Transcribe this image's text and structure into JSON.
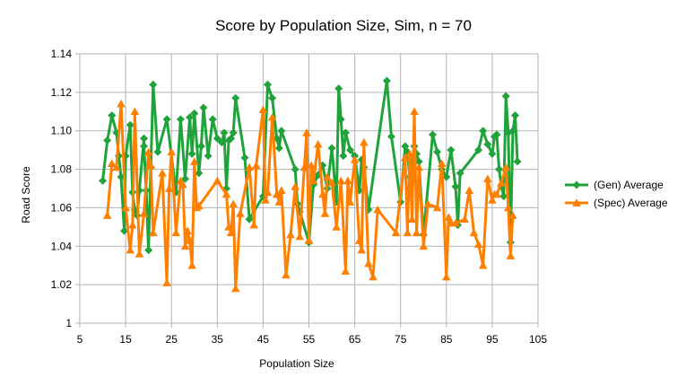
{
  "chart_data": {
    "type": "line",
    "title": "Score by Population Size, Sim, n = 70",
    "xlabel": "Population Size",
    "ylabel": "Road Score",
    "xlim": [
      5,
      105
    ],
    "ylim": [
      1,
      1.14
    ],
    "xticks": [
      5,
      15,
      25,
      35,
      45,
      55,
      65,
      75,
      85,
      95,
      105
    ],
    "yticks": [
      1,
      1.02,
      1.04,
      1.06,
      1.08,
      1.1,
      1.12,
      1.14
    ],
    "grid": true,
    "legend_position": "right",
    "series": [
      {
        "name": "(Gen) Average",
        "color": "#1fa33a",
        "marker": "diamond",
        "points": [
          [
            10,
            1.074
          ],
          [
            11,
            1.095
          ],
          [
            12,
            1.108
          ],
          [
            13,
            1.099
          ],
          [
            13.5,
            1.087
          ],
          [
            14,
            1.076
          ],
          [
            14.7,
            1.048
          ],
          [
            15,
            1.087
          ],
          [
            16,
            1.103
          ],
          [
            16.5,
            1.068
          ],
          [
            17,
            1.059
          ],
          [
            17.5,
            1.056
          ],
          [
            18,
            1.069
          ],
          [
            19,
            1.096
          ],
          [
            19,
            1.092
          ],
          [
            19.5,
            1.069
          ],
          [
            20,
            1.038
          ],
          [
            20.5,
            1.081
          ],
          [
            21,
            1.124
          ],
          [
            22,
            1.089
          ],
          [
            24,
            1.106
          ],
          [
            26,
            1.068
          ],
          [
            27,
            1.106
          ],
          [
            28,
            1.075
          ],
          [
            29,
            1.107
          ],
          [
            29.5,
            1.088
          ],
          [
            30,
            1.109
          ],
          [
            31,
            1.078
          ],
          [
            31.5,
            1.092
          ],
          [
            32,
            1.112
          ],
          [
            33,
            1.087
          ],
          [
            34,
            1.106
          ],
          [
            35,
            1.096
          ],
          [
            36,
            1.094
          ],
          [
            36.5,
            1.099
          ],
          [
            37,
            1.07
          ],
          [
            37.5,
            1.095
          ],
          [
            38,
            1.096
          ],
          [
            38.5,
            1.099
          ],
          [
            39,
            1.117
          ],
          [
            41,
            1.086
          ],
          [
            42,
            1.054
          ],
          [
            45,
            1.066
          ],
          [
            46,
            1.124
          ],
          [
            47,
            1.117
          ],
          [
            48,
            1.096
          ],
          [
            48.5,
            1.091
          ],
          [
            49,
            1.1
          ],
          [
            52,
            1.08
          ],
          [
            52.5,
            1.062
          ],
          [
            53,
            1.058
          ],
          [
            55,
            1.042
          ],
          [
            56,
            1.072
          ],
          [
            57,
            1.077
          ],
          [
            58,
            1.082
          ],
          [
            59,
            1.07
          ],
          [
            60,
            1.091
          ],
          [
            61,
            1.063
          ],
          [
            61.5,
            1.122
          ],
          [
            62,
            1.106
          ],
          [
            62.5,
            1.087
          ],
          [
            63,
            1.099
          ],
          [
            64,
            1.09
          ],
          [
            65,
            1.087
          ],
          [
            66,
            1.069
          ],
          [
            66.5,
            1.085
          ],
          [
            67,
            1.081
          ],
          [
            68,
            1.059
          ],
          [
            72,
            1.126
          ],
          [
            73,
            1.097
          ],
          [
            75,
            1.063
          ],
          [
            76,
            1.092
          ],
          [
            76.5,
            1.089
          ],
          [
            77,
            1.076
          ],
          [
            77.5,
            1.083
          ],
          [
            78,
            1.092
          ],
          [
            78.5,
            1.088
          ],
          [
            79,
            1.084
          ],
          [
            80,
            1.046
          ],
          [
            82,
            1.098
          ],
          [
            83,
            1.089
          ],
          [
            84,
            1.08
          ],
          [
            85,
            1.076
          ],
          [
            86,
            1.09
          ],
          [
            87,
            1.071
          ],
          [
            87.5,
            1.051
          ],
          [
            88,
            1.078
          ],
          [
            92,
            1.09
          ],
          [
            93,
            1.1
          ],
          [
            94,
            1.093
          ],
          [
            95,
            1.088
          ],
          [
            95.5,
            1.097
          ],
          [
            96,
            1.098
          ],
          [
            96.5,
            1.08
          ],
          [
            97,
            1.071
          ],
          [
            97.5,
            1.066
          ],
          [
            98,
            1.118
          ],
          [
            98.5,
            1.099
          ],
          [
            99,
            1.042
          ],
          [
            99.5,
            1.1
          ],
          [
            100,
            1.108
          ],
          [
            100.5,
            1.084
          ]
        ]
      },
      {
        "name": "(Spec) Average",
        "color": "#ff8000",
        "marker": "triangle",
        "points": [
          [
            11,
            1.056
          ],
          [
            12,
            1.083
          ],
          [
            13,
            1.081
          ],
          [
            14,
            1.114
          ],
          [
            15,
            1.06
          ],
          [
            16,
            1.038
          ],
          [
            16.5,
            1.051
          ],
          [
            17,
            1.11
          ],
          [
            18,
            1.036
          ],
          [
            19,
            1.057
          ],
          [
            20,
            1.089
          ],
          [
            20.5,
            1.082
          ],
          [
            21,
            1.047
          ],
          [
            23,
            1.078
          ],
          [
            24,
            1.021
          ],
          [
            24.5,
            1.07
          ],
          [
            25,
            1.089
          ],
          [
            26,
            1.047
          ],
          [
            27,
            1.074
          ],
          [
            27.5,
            1.072
          ],
          [
            28,
            1.04
          ],
          [
            28.5,
            1.048
          ],
          [
            29,
            1.043
          ],
          [
            29.5,
            1.03
          ],
          [
            30,
            1.084
          ],
          [
            30.5,
            1.06
          ],
          [
            31,
            1.061
          ],
          [
            35,
            1.074
          ],
          [
            37,
            1.067
          ],
          [
            37.5,
            1.05
          ],
          [
            38,
            1.047
          ],
          [
            38.5,
            1.062
          ],
          [
            39,
            1.018
          ],
          [
            40,
            1.057
          ],
          [
            42,
            1.081
          ],
          [
            43,
            1.051
          ],
          [
            43.5,
            1.082
          ],
          [
            45,
            1.111
          ],
          [
            45.5,
            1.064
          ],
          [
            46,
            1.068
          ],
          [
            47,
            1.107
          ],
          [
            48,
            1.067
          ],
          [
            48.5,
            1.063
          ],
          [
            49,
            1.069
          ],
          [
            50,
            1.025
          ],
          [
            51,
            1.046
          ],
          [
            52,
            1.071
          ],
          [
            53,
            1.045
          ],
          [
            54,
            1.081
          ],
          [
            54.5,
            1.099
          ],
          [
            55,
            1.043
          ],
          [
            55.5,
            1.082
          ],
          [
            56,
            1.074
          ],
          [
            57,
            1.093
          ],
          [
            58,
            1.067
          ],
          [
            58.5,
            1.057
          ],
          [
            59,
            1.076
          ],
          [
            60,
            1.073
          ],
          [
            61,
            1.05
          ],
          [
            62,
            1.074
          ],
          [
            63,
            1.027
          ],
          [
            63.5,
            1.074
          ],
          [
            64,
            1.063
          ],
          [
            65,
            1.085
          ],
          [
            66,
            1.043
          ],
          [
            66.5,
            1.038
          ],
          [
            67,
            1.094
          ],
          [
            68,
            1.031
          ],
          [
            69,
            1.024
          ],
          [
            70,
            1.059
          ],
          [
            74,
            1.047
          ],
          [
            76,
            1.086
          ],
          [
            76.5,
            1.047
          ],
          [
            77,
            1.088
          ],
          [
            77.5,
            1.054
          ],
          [
            78,
            1.11
          ],
          [
            78.5,
            1.047
          ],
          [
            79,
            1.081
          ],
          [
            80,
            1.04
          ],
          [
            81,
            1.062
          ],
          [
            83,
            1.06
          ],
          [
            84,
            1.083
          ],
          [
            85,
            1.024
          ],
          [
            85.5,
            1.055
          ],
          [
            86,
            1.052
          ],
          [
            87,
            1.052
          ],
          [
            89,
            1.054
          ],
          [
            90,
            1.069
          ],
          [
            91,
            1.047
          ],
          [
            92,
            1.041
          ],
          [
            93,
            1.03
          ],
          [
            94,
            1.075
          ],
          [
            95,
            1.064
          ],
          [
            95.5,
            1.067
          ],
          [
            96,
            1.067
          ],
          [
            97,
            1.073
          ],
          [
            98,
            1.081
          ],
          [
            98.5,
            1.06
          ],
          [
            99,
            1.035
          ],
          [
            99.5,
            1.056
          ]
        ]
      }
    ]
  }
}
